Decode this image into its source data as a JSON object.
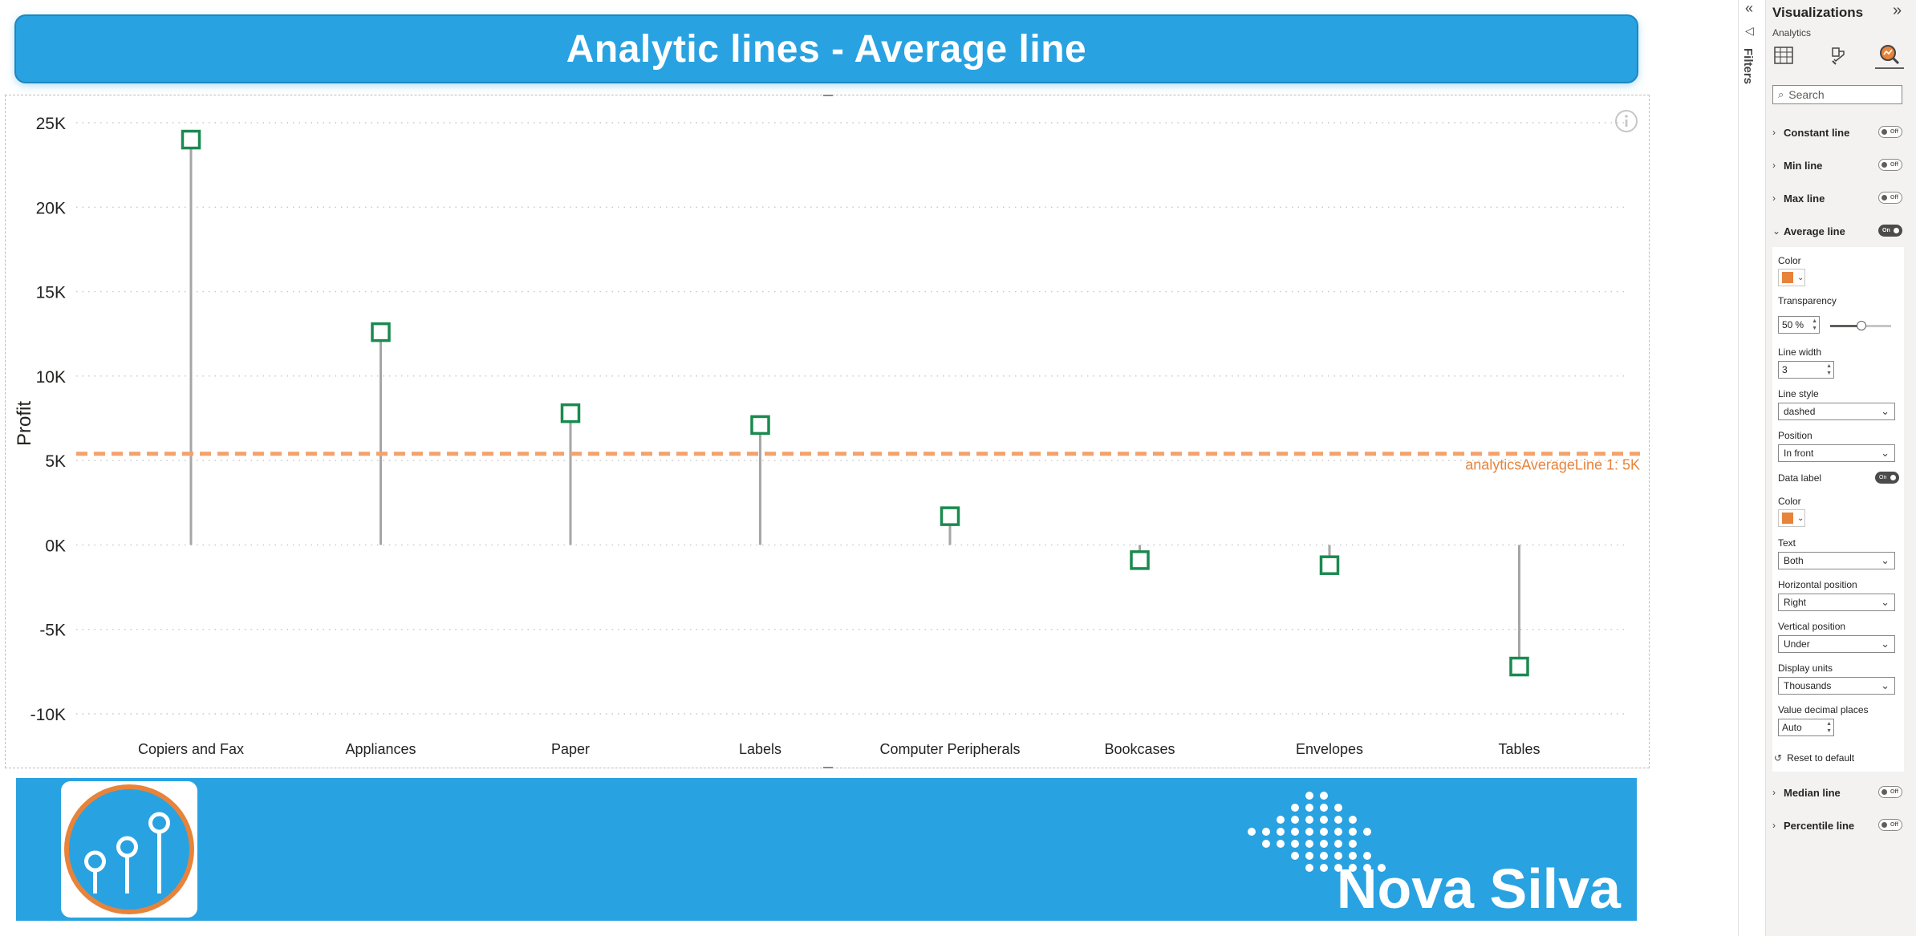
{
  "report": {
    "title": "Analytic lines - Average line",
    "brand_name": "Nova Silva"
  },
  "chart_data": {
    "type": "lollipop",
    "categories": [
      "Copiers and Fax",
      "Appliances",
      "Paper",
      "Labels",
      "Computer Peripherals",
      "Bookcases",
      "Envelopes",
      "Tables"
    ],
    "values": [
      24000,
      12600,
      7800,
      7100,
      1700,
      -900,
      -1200,
      -7200
    ],
    "ylabel": "Profit",
    "ylim": [
      -10000,
      25000
    ],
    "yticks": [
      25000,
      20000,
      15000,
      10000,
      5000,
      0,
      -5000,
      -10000
    ],
    "ytick_labels": [
      "25K",
      "20K",
      "15K",
      "10K",
      "5K",
      "0K",
      "-5K",
      "-10K"
    ],
    "grid": true,
    "average_line": {
      "value": 5400,
      "label": "analyticsAverageLine 1: 5K",
      "color": "#f4a26b"
    },
    "marker_color": "#1a8a4f",
    "stem_color": "#a6a6a6"
  },
  "filters_pane": {
    "label": "Filters"
  },
  "viz_pane": {
    "title": "Visualizations",
    "subtitle": "Analytics",
    "search_placeholder": "Search",
    "sections": {
      "constant_line": {
        "label": "Constant line",
        "toggle": "Off"
      },
      "min_line": {
        "label": "Min line",
        "toggle": "Off"
      },
      "max_line": {
        "label": "Max line",
        "toggle": "Off"
      },
      "average_line": {
        "label": "Average line",
        "toggle": "On"
      },
      "median_line": {
        "label": "Median line",
        "toggle": "Off"
      },
      "percentile_line": {
        "label": "Percentile line",
        "toggle": "Off"
      }
    },
    "average_settings": {
      "color_label": "Color",
      "color_value": "#e8833a",
      "transparency_label": "Transparency",
      "transparency_value": "50",
      "transparency_unit": "%",
      "line_width_label": "Line width",
      "line_width_value": "3",
      "line_style_label": "Line style",
      "line_style_value": "dashed",
      "position_label": "Position",
      "position_value": "In front",
      "data_label_label": "Data label",
      "data_label_toggle": "On",
      "label_color_label": "Color",
      "text_label": "Text",
      "text_value": "Both",
      "hpos_label": "Horizontal position",
      "hpos_value": "Right",
      "vpos_label": "Vertical position",
      "vpos_value": "Under",
      "units_label": "Display units",
      "units_value": "Thousands",
      "decimals_label": "Value decimal places",
      "decimals_value": "Auto"
    },
    "reset_label": "Reset to default"
  }
}
